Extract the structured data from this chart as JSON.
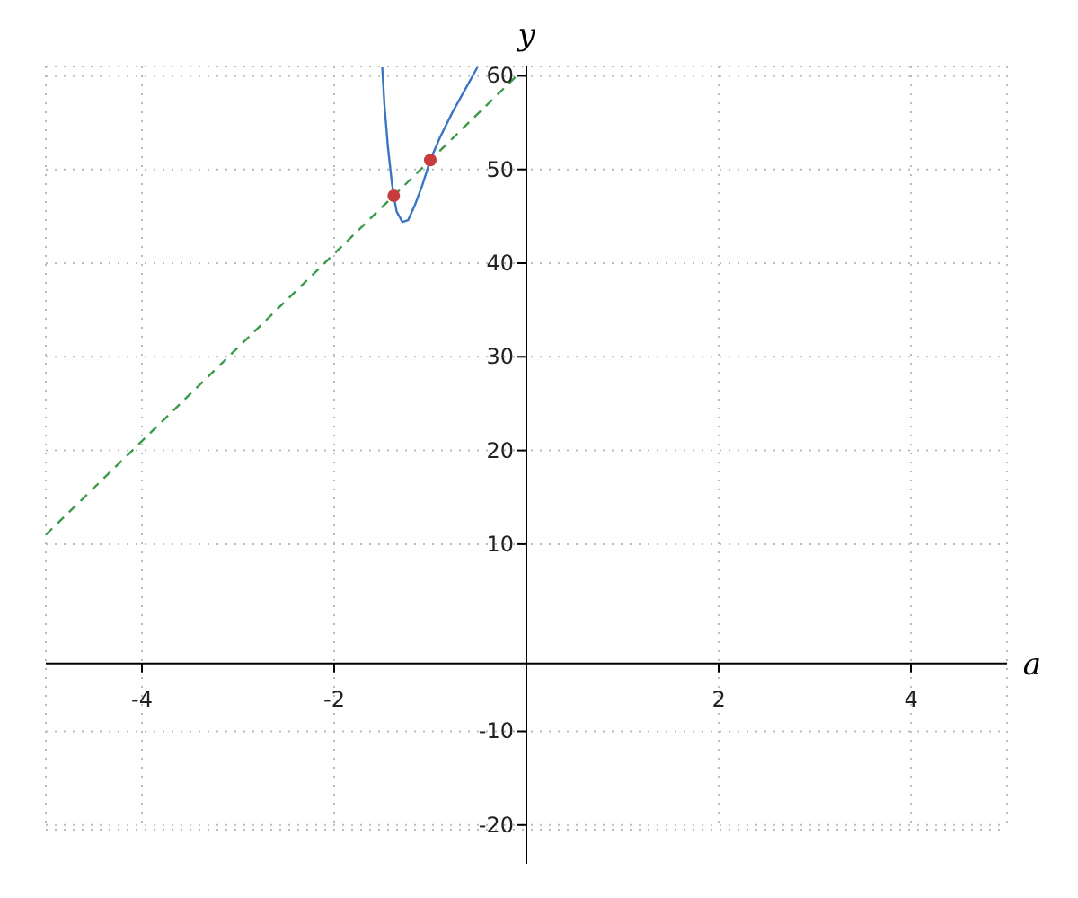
{
  "chart_data": {
    "type": "line",
    "xlabel": "a",
    "ylabel": "y",
    "xlim": [
      -5,
      5
    ],
    "ylim": [
      -20.5,
      61
    ],
    "xticks": [
      -4,
      -2,
      2,
      4
    ],
    "yticks": [
      -20,
      -10,
      10,
      20,
      30,
      40,
      50,
      60
    ],
    "grid": true,
    "series": [
      {
        "color": "#3a75c4",
        "line_style": "solid",
        "marker": "none",
        "x": [
          -1.5,
          -1.477,
          -1.44,
          -1.4,
          -1.38,
          -1.35,
          -1.29,
          -1.23,
          -1.16,
          -1.08,
          -1.0,
          -0.9,
          -0.77,
          -0.64,
          -0.51
        ],
        "values": [
          60.9,
          56.9,
          52.3,
          48.6,
          47.2,
          45.5,
          44.4,
          44.6,
          46.2,
          48.4,
          51.0,
          53.4,
          56.1,
          58.5,
          60.9
        ]
      },
      {
        "color": "#3a9a4a",
        "line_style": "dashed",
        "marker": "none",
        "x": [
          -5,
          -0.1
        ],
        "values": [
          11,
          60
        ]
      },
      {
        "type": "scatter",
        "color": "#c83c3c",
        "marker": "circle",
        "x": [
          -1.38,
          -1.0
        ],
        "values": [
          47.2,
          51.0
        ]
      }
    ]
  }
}
